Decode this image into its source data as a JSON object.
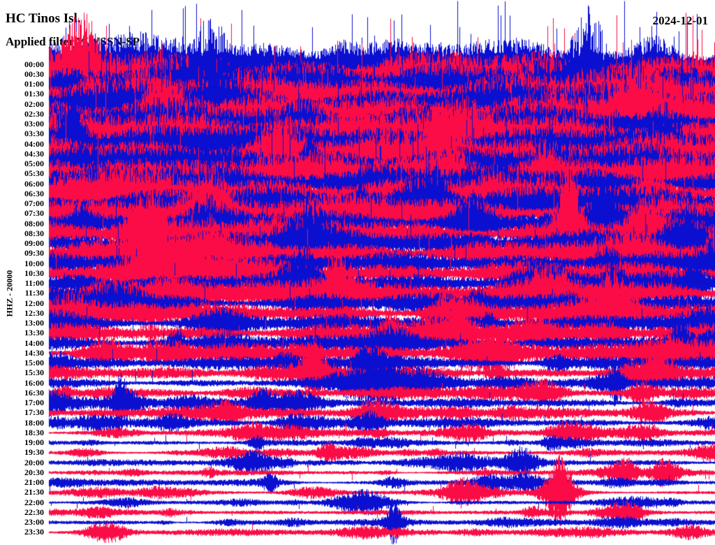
{
  "header": {
    "station": "HC Tinos Isl.",
    "filter_line": "Applied filter WWSSN-SP",
    "date": "2024-12-01"
  },
  "axis": {
    "channel_label": "HHZ - 20000"
  },
  "colors": {
    "blue": "#0b10d0",
    "red": "#fb0c46",
    "text": "#000000",
    "background": "#ffffff"
  },
  "chart_data": {
    "type": "line",
    "title": "HC Tinos Isl.",
    "subtitle": "Applied filter WWSSN-SP",
    "date": "2024-12-01",
    "channel": "HHZ",
    "scale": 20000,
    "row_duration_minutes": 30,
    "time_range": [
      "00:00",
      "23:30"
    ],
    "legend": "alternating blue/red 30-minute helicorder traces, amplitude decays through the day",
    "rows": [
      {
        "time": "00:00",
        "color": "blue",
        "amp": 46,
        "spike_prob": 0.06,
        "spike_amp": 95,
        "bursts": 2
      },
      {
        "time": "00:30",
        "color": "red",
        "amp": 44,
        "spike_prob": 0.06,
        "spike_amp": 88,
        "bursts": 2
      },
      {
        "time": "01:00",
        "color": "blue",
        "amp": 44,
        "spike_prob": 0.05,
        "spike_amp": 85,
        "bursts": 2
      },
      {
        "time": "01:30",
        "color": "red",
        "amp": 42,
        "spike_prob": 0.05,
        "spike_amp": 80,
        "bursts": 2
      },
      {
        "time": "02:00",
        "color": "blue",
        "amp": 42,
        "spike_prob": 0.05,
        "spike_amp": 76,
        "bursts": 2
      },
      {
        "time": "02:30",
        "color": "red",
        "amp": 44,
        "spike_prob": 0.05,
        "spike_amp": 76,
        "bursts": 2
      },
      {
        "time": "03:00",
        "color": "blue",
        "amp": 38,
        "spike_prob": 0.05,
        "spike_amp": 70,
        "bursts": 2
      },
      {
        "time": "03:30",
        "color": "red",
        "amp": 40,
        "spike_prob": 0.05,
        "spike_amp": 70,
        "bursts": 2
      },
      {
        "time": "04:00",
        "color": "blue",
        "amp": 36,
        "spike_prob": 0.04,
        "spike_amp": 66,
        "bursts": 3
      },
      {
        "time": "04:30",
        "color": "red",
        "amp": 38,
        "spike_prob": 0.04,
        "spike_amp": 66,
        "bursts": 3
      },
      {
        "time": "05:00",
        "color": "blue",
        "amp": 34,
        "spike_prob": 0.04,
        "spike_amp": 60,
        "bursts": 3
      },
      {
        "time": "05:30",
        "color": "red",
        "amp": 36,
        "spike_prob": 0.04,
        "spike_amp": 60,
        "bursts": 3
      },
      {
        "time": "06:00",
        "color": "blue",
        "amp": 32,
        "spike_prob": 0.04,
        "spike_amp": 56,
        "bursts": 3
      },
      {
        "time": "06:30",
        "color": "red",
        "amp": 34,
        "spike_prob": 0.04,
        "spike_amp": 56,
        "bursts": 3
      },
      {
        "time": "07:00",
        "color": "blue",
        "amp": 30,
        "spike_prob": 0.03,
        "spike_amp": 52,
        "bursts": 3
      },
      {
        "time": "07:30",
        "color": "red",
        "amp": 32,
        "spike_prob": 0.03,
        "spike_amp": 52,
        "bursts": 3
      },
      {
        "time": "08:00",
        "color": "blue",
        "amp": 28,
        "spike_prob": 0.03,
        "spike_amp": 48,
        "bursts": 4
      },
      {
        "time": "08:30",
        "color": "red",
        "amp": 30,
        "spike_prob": 0.03,
        "spike_amp": 48,
        "bursts": 4
      },
      {
        "time": "09:00",
        "color": "blue",
        "amp": 26,
        "spike_prob": 0.03,
        "spike_amp": 45,
        "bursts": 4
      },
      {
        "time": "09:30",
        "color": "red",
        "amp": 28,
        "spike_prob": 0.03,
        "spike_amp": 45,
        "bursts": 4
      },
      {
        "time": "10:00",
        "color": "blue",
        "amp": 22,
        "spike_prob": 0.025,
        "spike_amp": 40,
        "bursts": 4
      },
      {
        "time": "10:30",
        "color": "red",
        "amp": 25,
        "spike_prob": 0.025,
        "spike_amp": 40,
        "bursts": 4
      },
      {
        "time": "11:00",
        "color": "blue",
        "amp": 20,
        "spike_prob": 0.02,
        "spike_amp": 36,
        "bursts": 5
      },
      {
        "time": "11:30",
        "color": "red",
        "amp": 23,
        "spike_prob": 0.02,
        "spike_amp": 36,
        "bursts": 5
      },
      {
        "time": "12:00",
        "color": "blue",
        "amp": 18,
        "spike_prob": 0.02,
        "spike_amp": 32,
        "bursts": 5
      },
      {
        "time": "12:30",
        "color": "red",
        "amp": 21,
        "spike_prob": 0.02,
        "spike_amp": 32,
        "bursts": 5
      },
      {
        "time": "13:00",
        "color": "blue",
        "amp": 16,
        "spike_prob": 0.02,
        "spike_amp": 28,
        "bursts": 5
      },
      {
        "time": "13:30",
        "color": "red",
        "amp": 19,
        "spike_prob": 0.02,
        "spike_amp": 28,
        "bursts": 5
      },
      {
        "time": "14:00",
        "color": "blue",
        "amp": 14,
        "spike_prob": 0.015,
        "spike_amp": 26,
        "bursts": 6
      },
      {
        "time": "14:30",
        "color": "red",
        "amp": 17,
        "spike_prob": 0.015,
        "spike_amp": 26,
        "bursts": 6
      },
      {
        "time": "15:00",
        "color": "blue",
        "amp": 12,
        "spike_prob": 0.015,
        "spike_amp": 22,
        "bursts": 6
      },
      {
        "time": "15:30",
        "color": "red",
        "amp": 13,
        "spike_prob": 0.015,
        "spike_amp": 22,
        "bursts": 6
      },
      {
        "time": "16:00",
        "color": "blue",
        "amp": 10,
        "spike_prob": 0.012,
        "spike_amp": 18,
        "bursts": 7
      },
      {
        "time": "16:30",
        "color": "red",
        "amp": 10,
        "spike_prob": 0.012,
        "spike_amp": 18,
        "bursts": 7
      },
      {
        "time": "17:00",
        "color": "blue",
        "amp": 9,
        "spike_prob": 0.012,
        "spike_amp": 16,
        "bursts": 8
      },
      {
        "time": "17:30",
        "color": "red",
        "amp": 9,
        "spike_prob": 0.012,
        "spike_amp": 16,
        "bursts": 8
      },
      {
        "time": "18:00",
        "color": "blue",
        "amp": 8,
        "spike_prob": 0.01,
        "spike_amp": 15,
        "bursts": 8
      },
      {
        "time": "18:30",
        "color": "red",
        "amp": 7,
        "spike_prob": 0.01,
        "spike_amp": 14,
        "bursts": 9
      },
      {
        "time": "19:00",
        "color": "blue",
        "amp": 5,
        "spike_prob": 0.008,
        "spike_amp": 12,
        "bursts": 10
      },
      {
        "time": "19:30",
        "color": "red",
        "amp": 5,
        "spike_prob": 0.008,
        "spike_amp": 12,
        "bursts": 10
      },
      {
        "time": "20:00",
        "color": "blue",
        "amp": 5.5,
        "spike_prob": 0.008,
        "spike_amp": 13,
        "bursts": 10
      },
      {
        "time": "20:30",
        "color": "red",
        "amp": 5,
        "spike_prob": 0.008,
        "spike_amp": 12,
        "bursts": 10
      },
      {
        "time": "21:00",
        "color": "blue",
        "amp": 5.5,
        "spike_prob": 0.008,
        "spike_amp": 13,
        "bursts": 10
      },
      {
        "time": "21:30",
        "color": "red",
        "amp": 4.5,
        "spike_prob": 0.008,
        "spike_amp": 11,
        "bursts": 10
      },
      {
        "time": "22:00",
        "color": "blue",
        "amp": 4.5,
        "spike_prob": 0.008,
        "spike_amp": 12,
        "bursts": 10
      },
      {
        "time": "22:30",
        "color": "red",
        "amp": 4.5,
        "spike_prob": 0.008,
        "spike_amp": 11,
        "bursts": 10
      },
      {
        "time": "23:00",
        "color": "blue",
        "amp": 5,
        "spike_prob": 0.008,
        "spike_amp": 12,
        "bursts": 10
      },
      {
        "time": "23:30",
        "color": "red",
        "amp": 5.5,
        "spike_prob": 0.008,
        "spike_amp": 13,
        "bursts": 10
      }
    ]
  }
}
